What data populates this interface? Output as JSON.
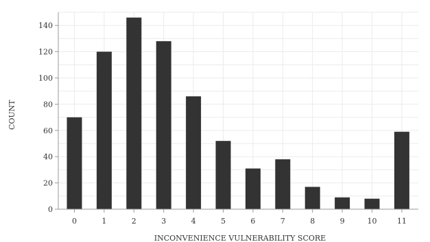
{
  "chart_data": {
    "type": "bar",
    "title": "",
    "xlabel": "INCONVENIENCE VULNERABILITY SCORE",
    "ylabel": "COUNT",
    "categories": [
      "0",
      "1",
      "2",
      "3",
      "4",
      "5",
      "6",
      "7",
      "8",
      "9",
      "10",
      "11"
    ],
    "values": [
      70,
      120,
      146,
      128,
      86,
      52,
      31,
      38,
      17,
      9,
      8,
      59
    ],
    "ylim": [
      0,
      150
    ],
    "yticks": [
      0,
      20,
      40,
      60,
      80,
      100,
      120,
      140
    ],
    "grid": true,
    "bar_color": "#333333",
    "grid_color": "#ebebeb"
  }
}
